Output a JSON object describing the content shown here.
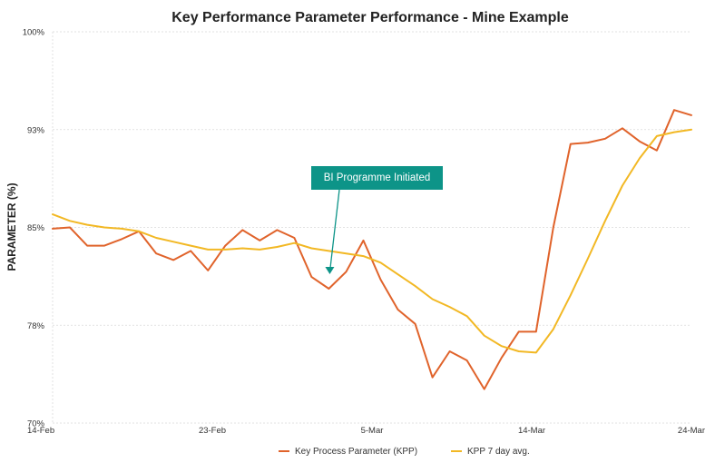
{
  "chart_data": {
    "type": "line",
    "title": "Key Performance Parameter Performance - Mine Example",
    "xlabel": "",
    "ylabel": "PARAMETER (%)",
    "ylim": [
      70,
      100
    ],
    "y_ticks": [
      "100%",
      "93%",
      "85%",
      "78%",
      "70%"
    ],
    "x_ticks": [
      "14-Feb",
      "23-Feb",
      "5-Mar",
      "14-Mar",
      "24-Mar"
    ],
    "grid": true,
    "legend_position": "bottom",
    "annotation": {
      "text": "BI Programme Initiated",
      "x_index": 16
    },
    "series": [
      {
        "name": "Key Process Parameter (KPP)",
        "color": "#e0632b",
        "values": [
          84.9,
          85.0,
          83.6,
          83.6,
          84.1,
          84.7,
          83.0,
          82.5,
          83.2,
          81.7,
          83.6,
          84.8,
          84.0,
          84.8,
          84.2,
          81.2,
          80.3,
          81.6,
          84.0,
          81.0,
          78.7,
          77.6,
          73.5,
          75.5,
          74.8,
          72.6,
          75.0,
          77.0,
          77.0,
          85.0,
          91.4,
          91.5,
          91.8,
          92.6,
          91.6,
          90.9,
          94.0,
          93.6
        ]
      },
      {
        "name": "KPP 7 day avg.",
        "color": "#f2b824",
        "values": [
          86.0,
          85.5,
          85.2,
          85.0,
          84.9,
          84.7,
          84.2,
          83.9,
          83.6,
          83.3,
          83.3,
          83.4,
          83.3,
          83.5,
          83.8,
          83.4,
          83.2,
          83.0,
          82.8,
          82.3,
          81.4,
          80.5,
          79.5,
          78.9,
          78.2,
          76.7,
          75.9,
          75.5,
          75.4,
          77.2,
          79.8,
          82.6,
          85.5,
          88.2,
          90.3,
          92.0,
          92.3,
          92.5
        ]
      }
    ]
  }
}
